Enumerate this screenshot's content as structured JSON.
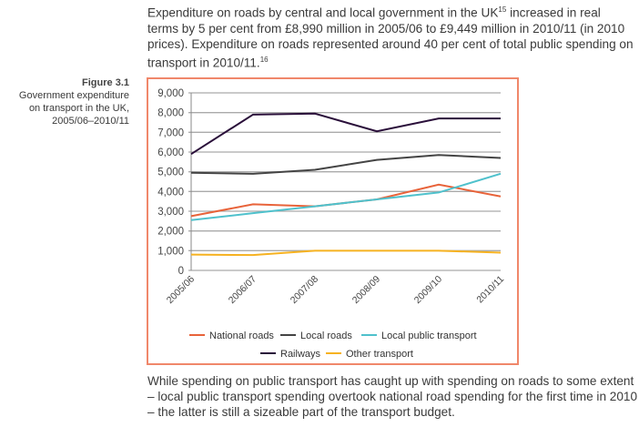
{
  "text_top": {
    "part1": "Expenditure on roads by central and local government in the UK",
    "sup1": "15",
    "part2": " increased in real",
    "line2": "terms by 5 per cent from £8,990 million in 2005/06 to £9,449 million in 2010/11 (in 2010",
    "line3": "prices). Expenditure on roads represented around 40 per cent of total public spending on",
    "line4": "transport in 2010/11.",
    "sup2": "16"
  },
  "caption": {
    "figure": "Figure 3.1",
    "line1": "Government expenditure",
    "line2": "on transport in the UK,",
    "line3": "2005/06–2010/11"
  },
  "text_bottom": {
    "line1": "While spending on public transport has caught up with spending on roads to some extent",
    "line2": "– local public transport spending overtook national road spending for the first time in 2010",
    "line3": "– the latter is still a sizeable part of the transport budget."
  },
  "chart_data": {
    "type": "line",
    "title": "",
    "xlabel": "",
    "ylabel": "",
    "ylim": [
      0,
      9000
    ],
    "grid": true,
    "legend": "bottom",
    "categories": [
      "2005/06",
      "2006/07",
      "2007/08",
      "2008/09",
      "2009/10",
      "2010/11"
    ],
    "yticks": [
      "0",
      "1,000",
      "2,000",
      "3,000",
      "4,000",
      "5,000",
      "6,000",
      "7,000",
      "8,000",
      "9,000"
    ],
    "series": [
      {
        "name": "National roads",
        "color": "#e8633a",
        "values": [
          2750,
          3350,
          3250,
          3600,
          4350,
          3750
        ]
      },
      {
        "name": "Local roads",
        "color": "#444444",
        "values": [
          4950,
          4900,
          5100,
          5600,
          5850,
          5700
        ]
      },
      {
        "name": "Local public transport",
        "color": "#4fc1cc",
        "values": [
          2550,
          2900,
          3250,
          3600,
          3950,
          4900
        ]
      },
      {
        "name": "Railways",
        "color": "#2a0f3a",
        "values": [
          5900,
          7900,
          7950,
          7050,
          7700,
          7700
        ]
      },
      {
        "name": "Other transport",
        "color": "#f6b221",
        "values": [
          800,
          780,
          1000,
          1000,
          1000,
          900
        ]
      }
    ]
  }
}
